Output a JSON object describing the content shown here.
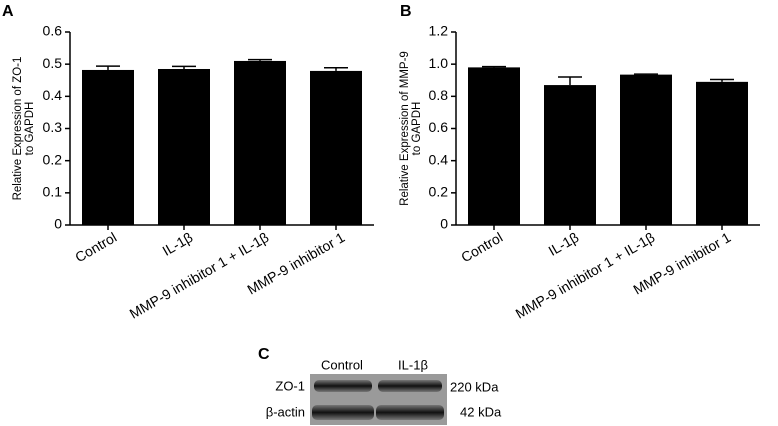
{
  "chart_data": [
    {
      "type": "bar",
      "panel_label": "A",
      "y_label": [
        "Relative Expression of ZO-1",
        "to GAPDH"
      ],
      "categories": [
        "Control",
        "IL-1β",
        "MMP-9 inhibitor 1 + IL-1β",
        "MMP-9 inhibitor 1"
      ],
      "values": [
        0.482,
        0.485,
        0.51,
        0.479
      ],
      "errors": [
        0.012,
        0.008,
        0.004,
        0.01
      ],
      "color": "#000000",
      "ylim": [
        0,
        0.6
      ],
      "yticks": [
        0,
        0.1,
        0.2,
        0.3,
        0.4,
        0.5,
        0.6
      ]
    },
    {
      "type": "bar",
      "panel_label": "B",
      "y_label": [
        "Relative Expression of MMP-9",
        "to GAPDH"
      ],
      "categories": [
        "Control",
        "IL-1β",
        "MMP-9 inhibitor 1 + IL-1β",
        "MMP-9 inhibitor 1"
      ],
      "values": [
        0.98,
        0.87,
        0.935,
        0.89
      ],
      "errors": [
        0.005,
        0.05,
        0.003,
        0.015
      ],
      "color": "#000000",
      "ylim": [
        0,
        1.2
      ],
      "yticks": [
        0,
        0.2,
        0.4,
        0.6,
        0.8,
        {
          "value": 1,
          "label": "1.0"
        },
        1.2
      ]
    }
  ],
  "blot": {
    "panel_label": "C",
    "lanes": [
      "Control",
      "IL-1β"
    ],
    "rows": [
      {
        "name": "ZO-1",
        "size": "220 kDa"
      },
      {
        "name": "β-actin",
        "size": "42 kDa"
      }
    ]
  }
}
